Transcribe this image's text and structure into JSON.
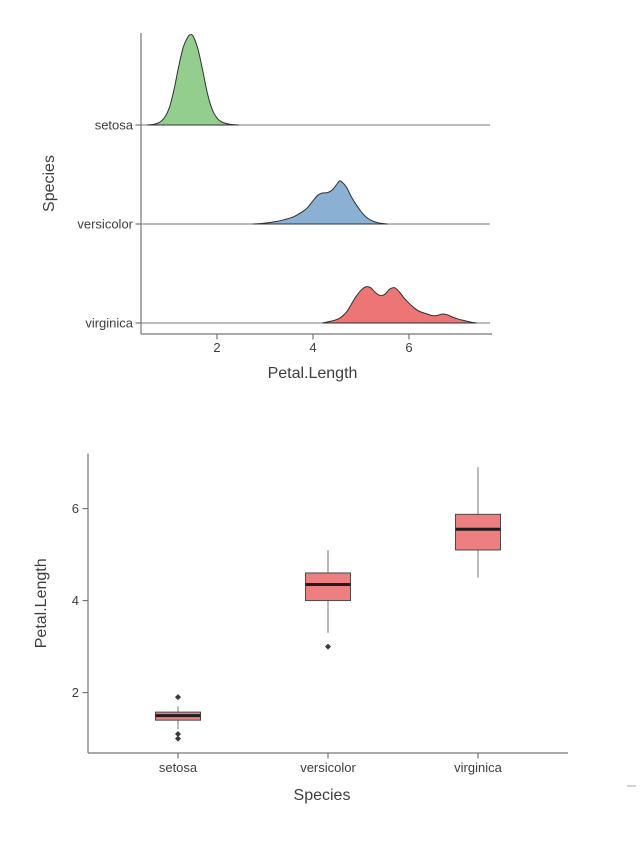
{
  "page": {
    "background": "#ffffff"
  },
  "chart_data": [
    {
      "id": "ridgeline",
      "type": "area",
      "subtype": "ridgeline-density",
      "title": "",
      "xlabel": "Petal.Length",
      "ylabel": "Species",
      "xticks": [
        2,
        4,
        6
      ],
      "xlim": [
        0.42,
        7.73
      ],
      "grid": false,
      "legend": "none",
      "categories": [
        "setosa",
        "versicolor",
        "virginica"
      ],
      "series": [
        {
          "name": "setosa",
          "fill": "#93ce8e",
          "outline": "#303030",
          "peak_x": 1.45,
          "points": [
            [
              0.55,
              0
            ],
            [
              0.7,
              0.02
            ],
            [
              0.8,
              0.06
            ],
            [
              0.9,
              0.16
            ],
            [
              1.0,
              0.38
            ],
            [
              1.1,
              0.8
            ],
            [
              1.2,
              1.35
            ],
            [
              1.3,
              1.82
            ],
            [
              1.4,
              2.06
            ],
            [
              1.45,
              2.1
            ],
            [
              1.5,
              2.07
            ],
            [
              1.6,
              1.78
            ],
            [
              1.7,
              1.28
            ],
            [
              1.8,
              0.74
            ],
            [
              1.9,
              0.36
            ],
            [
              2.0,
              0.16
            ],
            [
              2.1,
              0.07
            ],
            [
              2.25,
              0.02
            ],
            [
              2.45,
              0
            ]
          ]
        },
        {
          "name": "versicolor",
          "fill": "#8ab1d3",
          "outline": "#303030",
          "peak_x": 4.55,
          "points": [
            [
              2.75,
              0
            ],
            [
              3.0,
              0.02
            ],
            [
              3.2,
              0.05
            ],
            [
              3.4,
              0.1
            ],
            [
              3.6,
              0.17
            ],
            [
              3.8,
              0.3
            ],
            [
              3.9,
              0.4
            ],
            [
              4.0,
              0.54
            ],
            [
              4.1,
              0.67
            ],
            [
              4.2,
              0.72
            ],
            [
              4.3,
              0.73
            ],
            [
              4.4,
              0.79
            ],
            [
              4.5,
              0.93
            ],
            [
              4.55,
              1.0
            ],
            [
              4.6,
              0.98
            ],
            [
              4.7,
              0.85
            ],
            [
              4.8,
              0.63
            ],
            [
              4.9,
              0.45
            ],
            [
              5.0,
              0.29
            ],
            [
              5.1,
              0.17
            ],
            [
              5.2,
              0.09
            ],
            [
              5.35,
              0.03
            ],
            [
              5.55,
              0
            ]
          ]
        },
        {
          "name": "virginica",
          "fill": "#ee7576",
          "outline": "#303030",
          "peak_x": 5.15,
          "points": [
            [
              4.2,
              0
            ],
            [
              4.4,
              0.05
            ],
            [
              4.55,
              0.11
            ],
            [
              4.7,
              0.26
            ],
            [
              4.8,
              0.44
            ],
            [
              4.9,
              0.62
            ],
            [
              5.0,
              0.76
            ],
            [
              5.1,
              0.84
            ],
            [
              5.2,
              0.82
            ],
            [
              5.3,
              0.71
            ],
            [
              5.4,
              0.64
            ],
            [
              5.5,
              0.67
            ],
            [
              5.6,
              0.79
            ],
            [
              5.7,
              0.82
            ],
            [
              5.8,
              0.72
            ],
            [
              5.9,
              0.58
            ],
            [
              6.0,
              0.46
            ],
            [
              6.1,
              0.36
            ],
            [
              6.2,
              0.28
            ],
            [
              6.35,
              0.22
            ],
            [
              6.5,
              0.17
            ],
            [
              6.6,
              0.18
            ],
            [
              6.7,
              0.21
            ],
            [
              6.8,
              0.19
            ],
            [
              6.9,
              0.14
            ],
            [
              7.0,
              0.1
            ],
            [
              7.1,
              0.07
            ],
            [
              7.25,
              0.03
            ],
            [
              7.4,
              0
            ]
          ]
        }
      ]
    },
    {
      "id": "boxplot",
      "type": "box",
      "title": "",
      "xlabel": "Species",
      "ylabel": "Petal.Length",
      "yticks": [
        2,
        4,
        6
      ],
      "ylim": [
        0.705,
        7.195
      ],
      "grid": false,
      "legend": "none",
      "categories": [
        "setosa",
        "versicolor",
        "virginica"
      ],
      "box_fill": "#ee7f80",
      "box_stroke": "#4a4a4a",
      "median_color": "#1e1e1e",
      "whisker_color": "#7a7a7a",
      "outlier_color": "#3a3a3a",
      "series": [
        {
          "name": "setosa",
          "whisker_low": 1.2,
          "q1": 1.4,
          "median": 1.5,
          "q3": 1.575,
          "whisker_high": 1.7,
          "outliers": [
            1.9,
            1.1,
            1.0
          ]
        },
        {
          "name": "versicolor",
          "whisker_low": 3.3,
          "q1": 4.0,
          "median": 4.35,
          "q3": 4.6,
          "whisker_high": 5.1,
          "outliers": [
            3.0
          ]
        },
        {
          "name": "virginica",
          "whisker_low": 4.5,
          "q1": 5.1,
          "median": 5.55,
          "q3": 5.875,
          "whisker_high": 6.9,
          "outliers": []
        }
      ]
    }
  ],
  "style": {
    "axis_color": "#767676",
    "text_color": "#3e3e3e"
  }
}
